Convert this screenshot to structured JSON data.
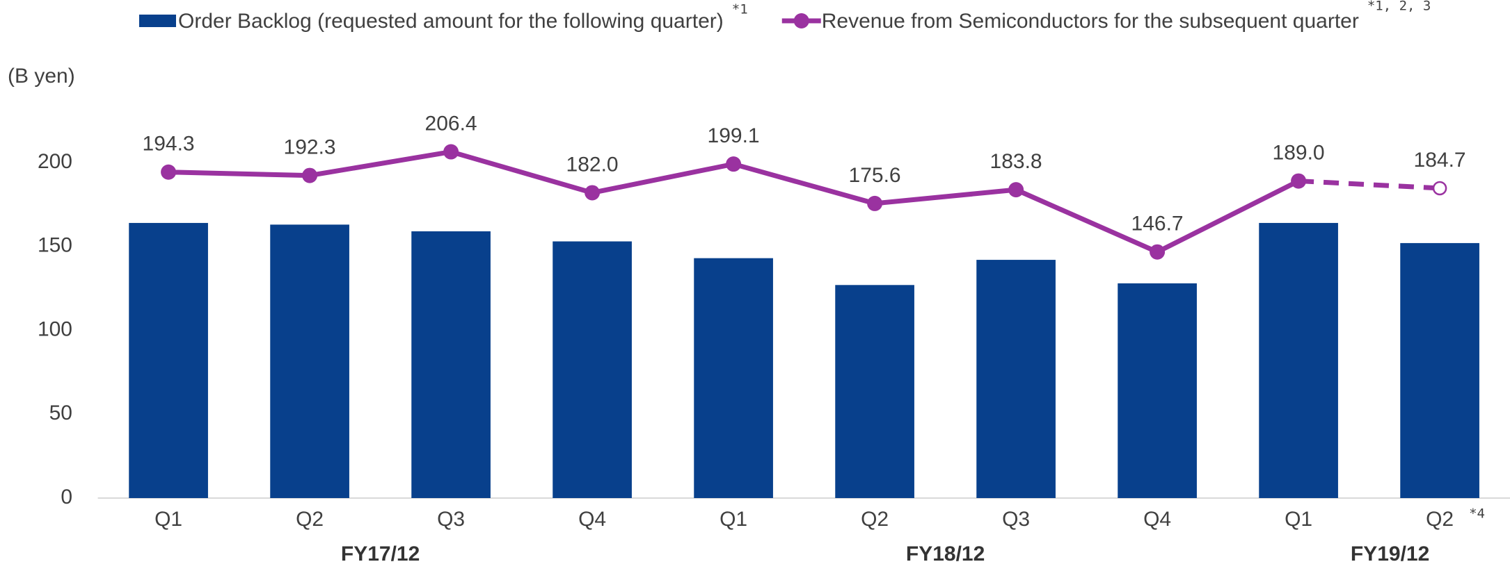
{
  "chart_data": {
    "type": "bar_line",
    "y_axis_label": "(B yen)",
    "categories": [
      "Q1",
      "Q2",
      "Q3",
      "Q4",
      "Q1",
      "Q2",
      "Q3",
      "Q4",
      "Q1",
      "Q2"
    ],
    "category_note": {
      "index": 9,
      "label": "*4"
    },
    "groups": [
      {
        "label": "FY17/12",
        "from": 0,
        "to": 3
      },
      {
        "label": "FY18/12",
        "from": 4,
        "to": 7
      },
      {
        "label": "FY19/12",
        "from": 8,
        "to": 9
      }
    ],
    "series": [
      {
        "name": "Order Backlog (requested amount for the following quarter)",
        "note": "*1",
        "kind": "bar",
        "color": "#08408c",
        "values": [
          164,
          163,
          159,
          153,
          143,
          127,
          142,
          128,
          164,
          152
        ]
      },
      {
        "name": "Revenue from Semiconductors for the subsequent quarter",
        "note": "*1, 2, 3",
        "kind": "line",
        "color": "#9a32a0",
        "dashed_last_segment": true,
        "values": [
          194.3,
          192.3,
          206.4,
          182.0,
          199.1,
          175.6,
          183.8,
          146.7,
          189.0,
          184.7
        ],
        "value_labels": [
          "194.3",
          "192.3",
          "206.4",
          "182.0",
          "199.1",
          "175.6",
          "183.8",
          "146.7",
          "189.0",
          "184.7"
        ]
      }
    ],
    "ylim": [
      0,
      200
    ],
    "yticks": [
      0,
      50,
      100,
      150,
      200
    ]
  }
}
